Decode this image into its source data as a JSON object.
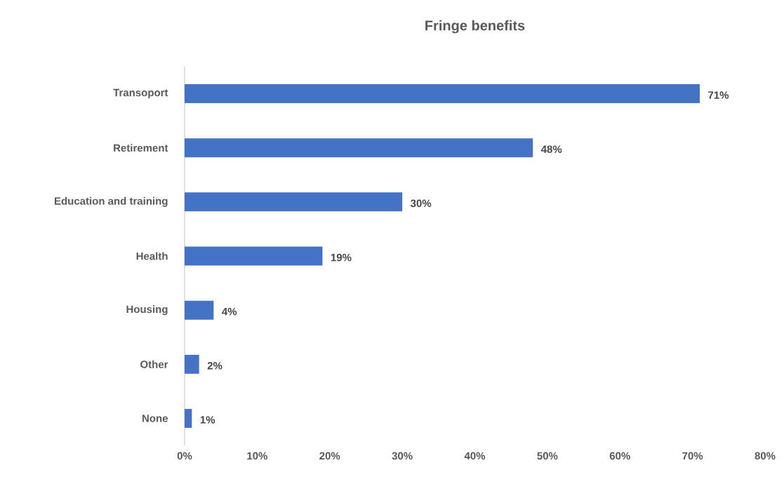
{
  "chart_data": {
    "type": "bar",
    "orientation": "horizontal",
    "title": "Fringe benefits",
    "categories": [
      "Transoport",
      "Retirement",
      "Education and training",
      "Health",
      "Housing",
      "Other",
      "None"
    ],
    "values": [
      71,
      48,
      30,
      19,
      4,
      2,
      1
    ],
    "value_labels": [
      "71%",
      "48%",
      "30%",
      "19%",
      "4%",
      "2%",
      "1%"
    ],
    "color": "#4472c4",
    "xlim": [
      0,
      80
    ],
    "xticks": [
      {
        "value": 0,
        "label": "0%"
      },
      {
        "value": 10,
        "label": "10%"
      },
      {
        "value": 20,
        "label": "20%"
      },
      {
        "value": 30,
        "label": "30%"
      },
      {
        "value": 40,
        "label": "40%"
      },
      {
        "value": 50,
        "label": "50%"
      },
      {
        "value": 60,
        "label": "60%"
      },
      {
        "value": 70,
        "label": "70%"
      },
      {
        "value": 80,
        "label": "80%"
      }
    ]
  }
}
